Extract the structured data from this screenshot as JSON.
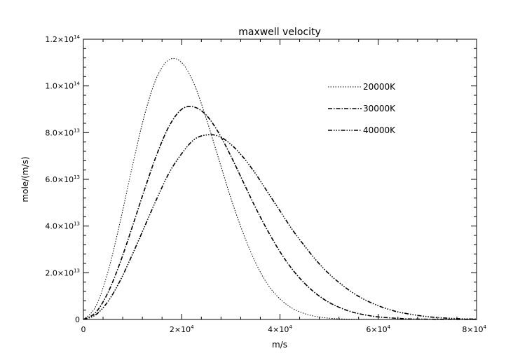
{
  "chart_data": {
    "type": "line",
    "title": "maxwell velocity",
    "xlabel": "m/s",
    "ylabel": "mole/(m/s)",
    "xlim": [
      0,
      80000
    ],
    "ylim": [
      0,
      120000000000000.0
    ],
    "grid": false,
    "legend_position": "top-right",
    "x_ticks": [
      {
        "value": 0,
        "mant": "0",
        "exp": ""
      },
      {
        "value": 20000,
        "mant": "2×10",
        "exp": "4"
      },
      {
        "value": 40000,
        "mant": "4×10",
        "exp": "4"
      },
      {
        "value": 60000,
        "mant": "6×10",
        "exp": "4"
      },
      {
        "value": 80000,
        "mant": "8×10",
        "exp": "4"
      }
    ],
    "y_ticks": [
      {
        "value": 0,
        "mant": "0",
        "exp": ""
      },
      {
        "value": 20000000000000.0,
        "mant": "2.0×10",
        "exp": "13"
      },
      {
        "value": 40000000000000.0,
        "mant": "4.0×10",
        "exp": "13"
      },
      {
        "value": 60000000000000.0,
        "mant": "6.0×10",
        "exp": "13"
      },
      {
        "value": 80000000000000.0,
        "mant": "8.0×10",
        "exp": "13"
      },
      {
        "value": 100000000000000.0,
        "mant": "1.0×10",
        "exp": "14"
      },
      {
        "value": 120000000000000.0,
        "mant": "1.2×10",
        "exp": "14"
      }
    ],
    "series": [
      {
        "name": "20000K",
        "dash": "1.5,2",
        "peak_x": 18000,
        "peak_y": 111500000000000.0,
        "x": [
          0,
          2500,
          5000,
          7500,
          10000,
          12500,
          15000,
          17500,
          20000,
          22500,
          25000,
          27500,
          30000,
          32500,
          35000,
          37500,
          40000,
          42500,
          45000,
          47500,
          50000,
          52500,
          55000,
          60000,
          80000
        ],
        "y": [
          0,
          5500000000000.0,
          20500000000000.0,
          42000000000000.0,
          66000000000000.0,
          88000000000000.0,
          104000000000000.0,
          111300000000000.0,
          110000000000000.0,
          101000000000000.0,
          86000000000000.0,
          69000000000000.0,
          52000000000000.0,
          37000000000000.0,
          24500000000000.0,
          15000000000000.0,
          8800000000000.0,
          4800000000000.0,
          2500000000000.0,
          1200000000000.0,
          550000000000.0,
          240000000000.0,
          100000000000.0,
          15000000000.0,
          0
        ]
      },
      {
        "name": "30000K",
        "dash": "6,2,1.5,2",
        "peak_x": 22000,
        "peak_y": 91000000000000.0,
        "x": [
          0,
          2500,
          5000,
          7500,
          10000,
          12500,
          15000,
          17500,
          20000,
          22500,
          25000,
          27500,
          30000,
          32500,
          35000,
          37500,
          40000,
          42500,
          45000,
          47500,
          50000,
          52500,
          55000,
          57500,
          60000,
          65000,
          70000,
          80000
        ],
        "y": [
          0,
          3000000000000.0,
          11500000000000.0,
          24500000000000.0,
          40000000000000.0,
          56000000000000.0,
          71000000000000.0,
          83000000000000.0,
          90000000000000.0,
          91000000000000.0,
          87500000000000.0,
          80000000000000.0,
          70000000000000.0,
          59000000000000.0,
          48000000000000.0,
          38000000000000.0,
          29000000000000.0,
          21500000000000.0,
          15500000000000.0,
          10800000000000.0,
          7300000000000.0,
          4800000000000.0,
          3000000000000.0,
          1900000000000.0,
          1100000000000.0,
          350000000000.0,
          100000000000.0,
          0
        ]
      },
      {
        "name": "40000K",
        "dash": "6,2,1.5,2,1.5,2,1.5,2",
        "peak_x": 25500,
        "peak_y": 79000000000000.0,
        "x": [
          0,
          2500,
          5000,
          7500,
          10000,
          12500,
          15000,
          17500,
          20000,
          22500,
          25000,
          27500,
          30000,
          32500,
          35000,
          37500,
          40000,
          42500,
          45000,
          47500,
          50000,
          52500,
          55000,
          57500,
          60000,
          62500,
          65000,
          70000,
          75000,
          80000
        ],
        "y": [
          0,
          2000000000000.0,
          7700000000000.0,
          16700000000000.0,
          28000000000000.0,
          40000000000000.0,
          52000000000000.0,
          63000000000000.0,
          71000000000000.0,
          77000000000000.0,
          79000000000000.0,
          78500000000000.0,
          75000000000000.0,
          69500000000000.0,
          62500000000000.0,
          54500000000000.0,
          46500000000000.0,
          38500000000000.0,
          31500000000000.0,
          25000000000000.0,
          19500000000000.0,
          15000000000000.0,
          11200000000000.0,
          8200000000000.0,
          5900000000000.0,
          4100000000000.0,
          2800000000000.0,
          1200000000000.0,
          450000000000.0,
          150000000000.0
        ]
      }
    ]
  }
}
